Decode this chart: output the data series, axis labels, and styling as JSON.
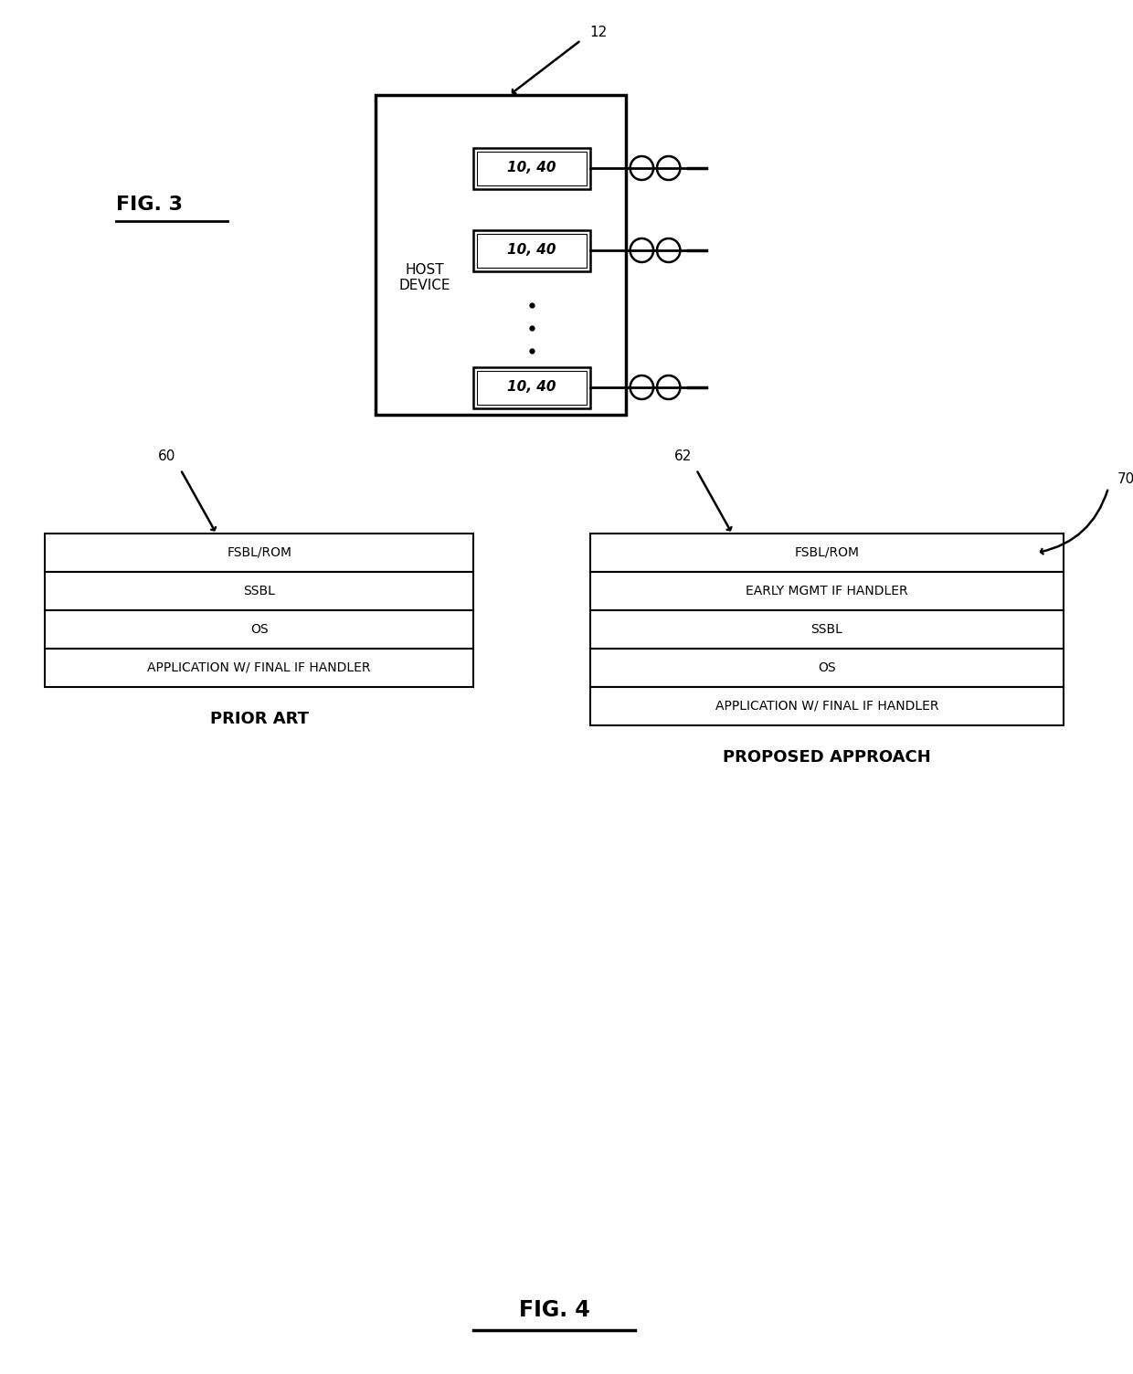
{
  "bg_color": "#ffffff",
  "fig_label": "FIG. 3",
  "fig4_label": "FIG. 4",
  "host_device_label": "HOST\nDEVICE",
  "module_label": "10, 40",
  "ref_12": "12",
  "ref_60": "60",
  "ref_62": "62",
  "ref_70": "70",
  "prior_art_label": "PRIOR ART",
  "proposed_label": "PROPOSED APPROACH",
  "prior_art_rows": [
    "FSBL/ROM",
    "SSBL",
    "OS",
    "APPLICATION W/ FINAL IF HANDLER"
  ],
  "proposed_rows": [
    "FSBL/ROM",
    "EARLY MGMT IF HANDLER",
    "SSBL",
    "OS",
    "APPLICATION W/ FINAL IF HANDLER"
  ],
  "line_color": "#000000",
  "text_color": "#000000",
  "font_size_labels": 11,
  "font_size_box_text": 10,
  "font_size_title": 14,
  "font_size_ref": 10
}
